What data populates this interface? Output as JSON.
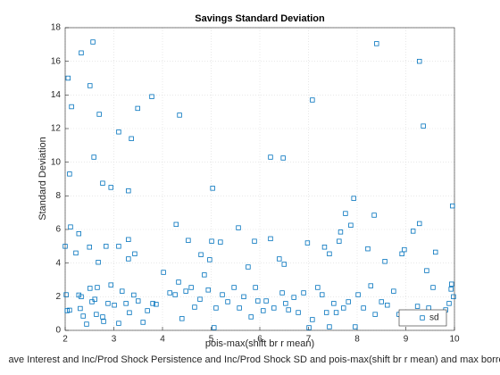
{
  "chart_data": {
    "type": "scatter",
    "title": "Savings Standard Deviation",
    "xlabel": "pois-max(shift br r mean)",
    "ylabel": "Standard Deviation",
    "caption": "ave Interest and Inc/Prod Shock Persistence and Inc/Prod Shock SD and pois-max(shift br r mean) and max borrow",
    "xlim": [
      2,
      10
    ],
    "ylim": [
      0,
      18
    ],
    "xticks": [
      2,
      3,
      4,
      5,
      6,
      7,
      8,
      9,
      10
    ],
    "yticks": [
      0,
      2,
      4,
      6,
      8,
      10,
      12,
      14,
      16,
      18
    ],
    "grid": true,
    "legend": "southeast",
    "series": [
      {
        "name": "sd",
        "color": "#0072bd",
        "x": [
          2.06,
          2.13,
          2.33,
          2.57,
          2.51,
          2.7,
          2.59,
          2.09,
          3.1,
          3.36,
          3.49,
          3.78,
          4.35,
          7.08,
          8.4,
          9.28,
          9.36,
          2.77,
          2.94,
          3.3,
          5.03,
          6.22,
          6.48,
          7.93,
          9.96,
          2.11,
          2.0,
          2.28,
          2.22,
          2.5,
          2.68,
          2.84,
          3.1,
          3.3,
          3.3,
          3.43,
          4.28,
          4.53,
          4.79,
          4.97,
          5.01,
          5.19,
          5.56,
          5.76,
          5.89,
          6.22,
          6.4,
          6.5,
          6.98,
          7.33,
          7.43,
          7.63,
          7.66,
          7.76,
          7.87,
          8.22,
          8.35,
          8.57,
          8.92,
          8.97,
          9.15,
          9.28,
          9.61,
          9.43,
          2.02,
          2.04,
          2.09,
          2.28,
          2.33,
          2.31,
          2.37,
          2.44,
          2.51,
          2.55,
          2.61,
          2.64,
          2.66,
          2.77,
          2.79,
          2.88,
          2.94,
          3.01,
          3.1,
          3.17,
          3.25,
          3.32,
          3.41,
          3.5,
          3.6,
          3.69,
          3.8,
          3.87,
          4.02,
          4.15,
          4.26,
          4.33,
          4.4,
          4.48,
          4.59,
          4.66,
          4.77,
          4.86,
          4.94,
          5.06,
          5.1,
          5.23,
          5.34,
          5.47,
          5.58,
          5.67,
          5.82,
          5.91,
          5.96,
          6.07,
          6.13,
          6.29,
          6.46,
          6.53,
          6.59,
          6.7,
          6.79,
          6.9,
          7.01,
          7.08,
          7.19,
          7.28,
          7.37,
          7.43,
          7.52,
          7.57,
          7.72,
          7.82,
          7.96,
          8.02,
          8.13,
          8.28,
          8.37,
          8.5,
          8.62,
          8.75,
          8.86,
          8.94,
          9.06,
          9.15,
          9.24,
          9.34,
          9.47,
          9.56,
          9.69,
          9.82,
          9.89,
          9.93,
          9.98,
          9.94
        ],
        "values": [
          15.0,
          13.3,
          16.5,
          17.15,
          14.55,
          12.85,
          10.3,
          9.3,
          11.8,
          11.4,
          13.2,
          13.9,
          12.8,
          13.7,
          17.05,
          16.0,
          12.15,
          8.75,
          8.5,
          8.3,
          8.45,
          10.3,
          10.25,
          7.85,
          7.4,
          6.15,
          5.0,
          5.75,
          4.6,
          4.95,
          4.05,
          5.0,
          5.0,
          5.4,
          4.25,
          4.55,
          6.3,
          5.35,
          4.5,
          4.2,
          5.3,
          5.25,
          6.1,
          3.77,
          5.3,
          5.45,
          4.25,
          3.93,
          5.2,
          4.95,
          4.55,
          5.3,
          5.85,
          6.95,
          6.25,
          4.85,
          6.85,
          4.1,
          4.55,
          4.8,
          5.9,
          6.35,
          4.65,
          3.55,
          2.12,
          1.17,
          1.2,
          2.1,
          2.0,
          1.3,
          0.85,
          0.37,
          2.5,
          1.7,
          1.85,
          0.95,
          2.55,
          0.8,
          0.53,
          1.6,
          2.7,
          1.5,
          0.42,
          2.33,
          1.6,
          1.05,
          2.1,
          1.75,
          0.48,
          1.17,
          1.6,
          1.55,
          3.45,
          2.23,
          2.12,
          2.87,
          0.7,
          2.33,
          2.55,
          1.38,
          1.85,
          3.3,
          2.4,
          0.16,
          1.33,
          2.12,
          1.7,
          2.55,
          1.33,
          2.0,
          0.8,
          2.55,
          1.75,
          1.17,
          1.75,
          1.33,
          2.23,
          1.6,
          1.22,
          1.96,
          1.06,
          2.23,
          0.16,
          0.64,
          2.55,
          2.12,
          1.06,
          0.21,
          1.6,
          1.06,
          1.33,
          1.7,
          0.21,
          2.12,
          1.33,
          2.65,
          0.95,
          1.7,
          1.5,
          2.33,
          0.95,
          1.06,
          1.06,
          0.53,
          1.43,
          0.8,
          1.33,
          2.55,
          0.8,
          1.22,
          1.6,
          2.45,
          2.0,
          2.75
        ]
      }
    ]
  }
}
